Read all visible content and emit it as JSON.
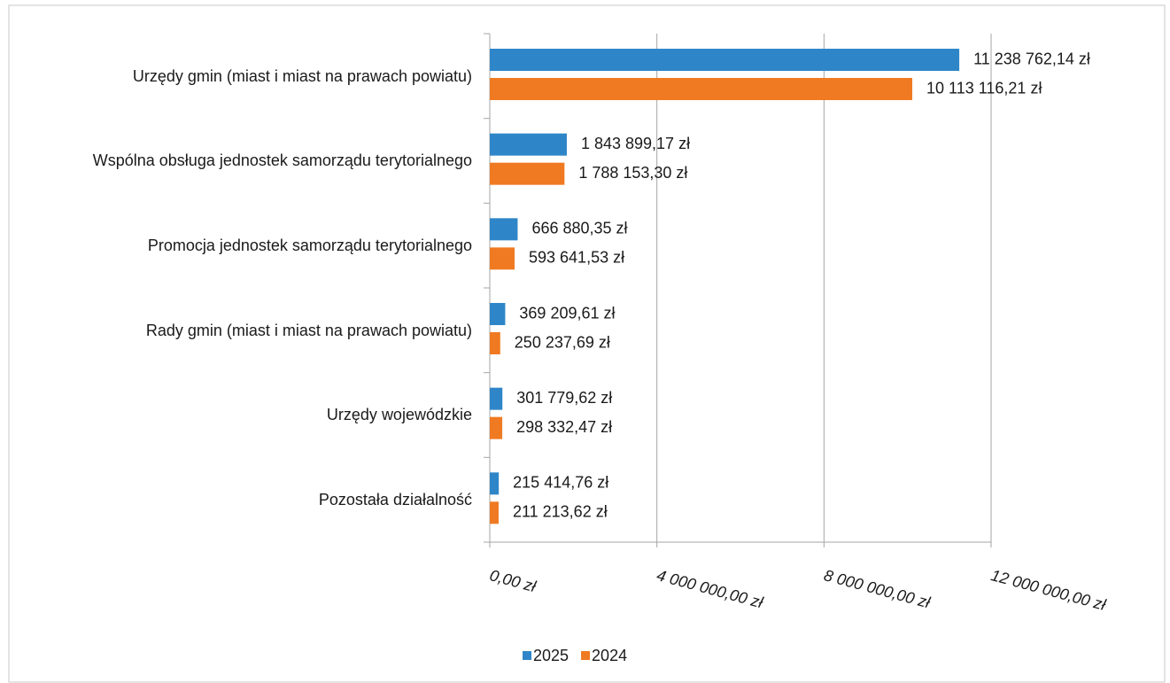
{
  "chart_data": {
    "type": "hbar",
    "categories": [
      "Urzędy gmin (miast i miast na prawach powiatu)",
      "Wspólna obsługa jednostek samorządu terytorialnego",
      "Promocja jednostek samorządu terytorialnego",
      "Rady gmin (miast i miast na prawach powiatu)",
      "Urzędy wojewódzkie",
      "Pozostała działalność"
    ],
    "series": [
      {
        "name": "2025",
        "color": "#2e86c8",
        "values": [
          11238762.14,
          1843899.17,
          666880.35,
          369209.61,
          301779.62,
          215414.76
        ],
        "value_labels": [
          "11 238 762,14 zł",
          "1 843 899,17 zł",
          "666 880,35 zł",
          "369 209,61 zł",
          "301 779,62 zł",
          "215 414,76 zł"
        ]
      },
      {
        "name": "2024",
        "color": "#f07a22",
        "values": [
          10113116.21,
          1788153.3,
          593641.53,
          250237.69,
          298332.47,
          211213.62
        ],
        "value_labels": [
          "10 113 116,21 zł",
          "1 788 153,30 zł",
          "593 641,53 zł",
          "250 237,69 zł",
          "298 332,47 zł",
          "211 213,62 zł"
        ]
      }
    ],
    "xlim": [
      0,
      12000000
    ],
    "xticks": [
      {
        "value": 0,
        "label": "0,00 zł"
      },
      {
        "value": 4000000,
        "label": "4 000 000,00 zł"
      },
      {
        "value": 8000000,
        "label": "8 000 000,00 zł"
      },
      {
        "value": 12000000,
        "label": "12 000 000,00 zł"
      }
    ],
    "grid": true,
    "legend": "bottom"
  }
}
